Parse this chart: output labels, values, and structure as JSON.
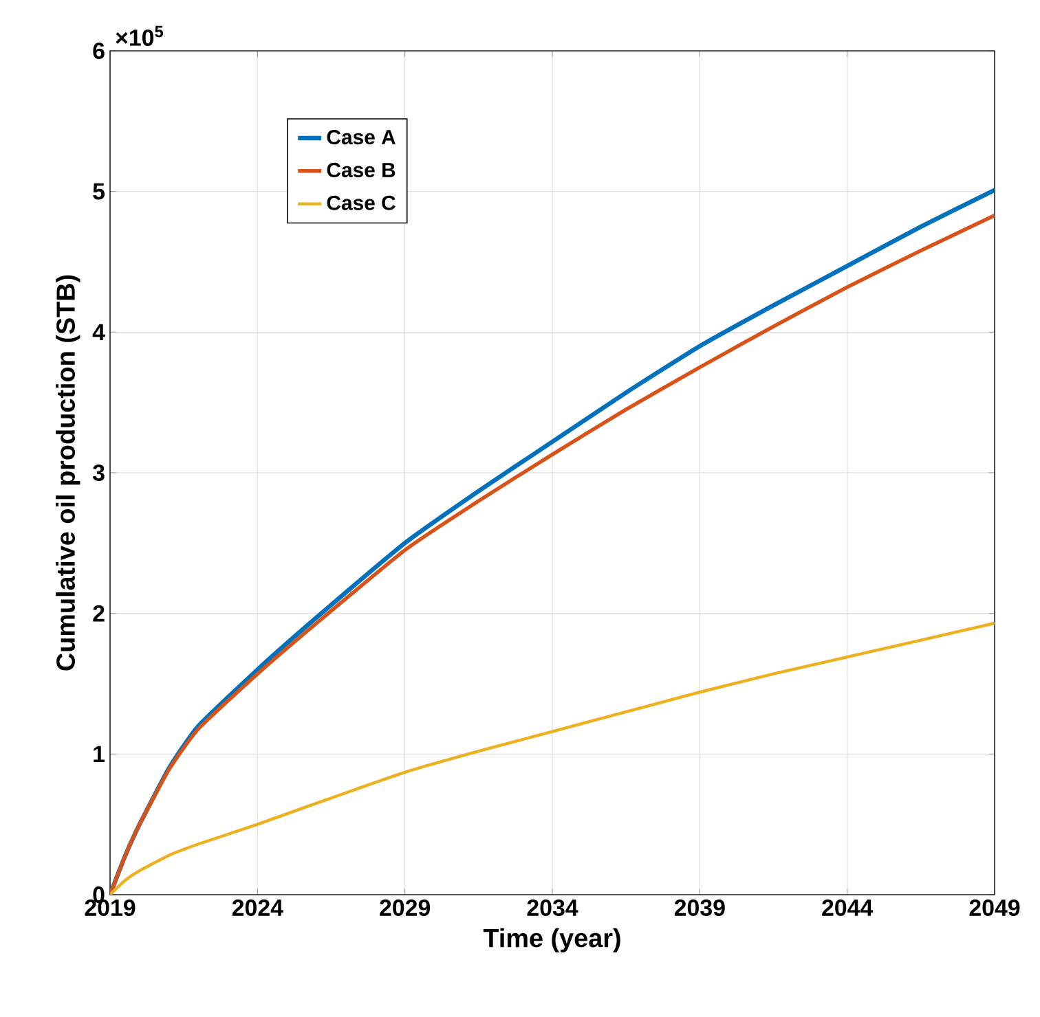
{
  "chart_data": {
    "type": "line",
    "xlabel": "Time (year)",
    "ylabel": "Cumulative oil production (STB)",
    "annotations": [
      "×10$^{5}$"
    ],
    "xlim": [
      2019,
      2049
    ],
    "ylim": [
      0,
      6
    ],
    "xticks": [
      2019,
      2024,
      2029,
      2034,
      2039,
      2044,
      2049
    ],
    "yticks": [
      0,
      1,
      2,
      3,
      4,
      5,
      6
    ],
    "grid": true,
    "legend": "top left",
    "line_style": "solid",
    "x": [
      2019,
      2019.5,
      2020,
      2021,
      2022,
      2024,
      2026,
      2029,
      2031.5,
      2034,
      2036.5,
      2039,
      2041.5,
      2044,
      2046.5,
      2049
    ],
    "series": [
      {
        "name": "Case A",
        "color": "#0072bd",
        "values": [
          0,
          0.27,
          0.5,
          0.9,
          1.2,
          1.6,
          1.97,
          2.5,
          2.87,
          3.22,
          3.57,
          3.9,
          4.19,
          4.47,
          4.75,
          5.01
        ]
      },
      {
        "name": "Case B",
        "color": "#d95319",
        "values": [
          0,
          0.27,
          0.5,
          0.89,
          1.18,
          1.57,
          1.93,
          2.45,
          2.8,
          3.13,
          3.45,
          3.75,
          4.04,
          4.32,
          4.58,
          4.83
        ]
      },
      {
        "name": "Case C",
        "color": "#edb120",
        "values": [
          0,
          0.1,
          0.17,
          0.28,
          0.36,
          0.5,
          0.65,
          0.87,
          1.02,
          1.16,
          1.3,
          1.44,
          1.57,
          1.69,
          1.81,
          1.93
        ]
      }
    ]
  }
}
